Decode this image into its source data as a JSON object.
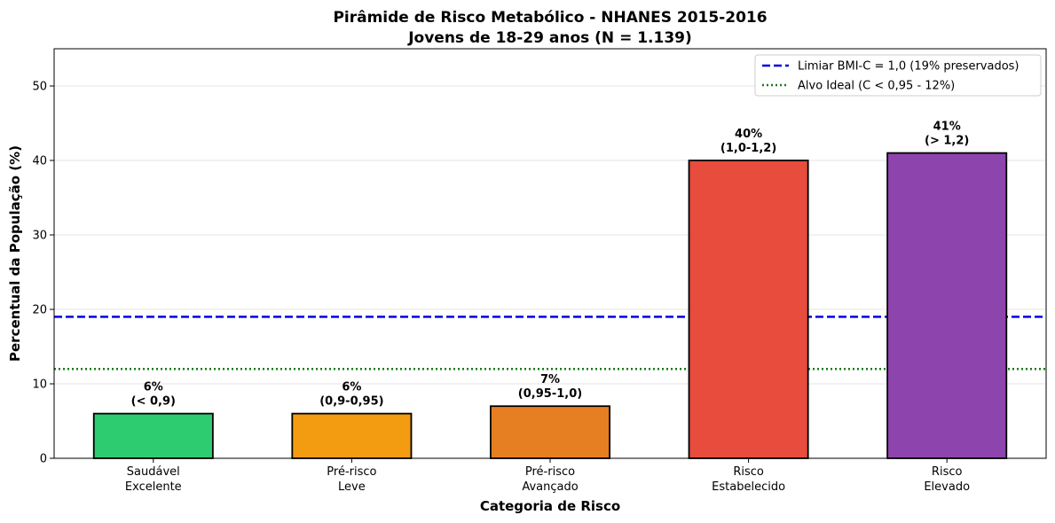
{
  "chart_data": {
    "type": "bar",
    "title": "Pirâmide de Risco Metabólico - NHANES 2015-2016",
    "subtitle": "Jovens de 18-29 anos (N = 1.139)",
    "xlabel": "Categoria de Risco",
    "ylabel": "Percentual da População (%)",
    "ylim": [
      0,
      55
    ],
    "yticks": [
      0,
      10,
      20,
      30,
      40,
      50
    ],
    "grid": "y",
    "legend_position": "top-right",
    "categories": [
      [
        "Saudável",
        "Excelente"
      ],
      [
        "Pré-risco",
        "Leve"
      ],
      [
        "Pré-risco",
        "Avançado"
      ],
      [
        "Risco",
        "Estabelecido"
      ],
      [
        "Risco",
        "Elevado"
      ]
    ],
    "values": [
      6,
      6,
      7,
      40,
      41
    ],
    "bar_labels": [
      [
        "6%",
        "(< 0,9)"
      ],
      [
        "6%",
        "(0,9-0,95)"
      ],
      [
        "7%",
        "(0,95-1,0)"
      ],
      [
        "40%",
        "(1,0-1,2)"
      ],
      [
        "41%",
        "(> 1,2)"
      ]
    ],
    "colors": [
      "#2ecc71",
      "#f39c12",
      "#e67e22",
      "#e74c3c",
      "#8e44ad"
    ],
    "reference_lines": [
      {
        "value": 19,
        "label": "Limiar BMI-C = 1,0 (19% preservados)",
        "color": "#0000dd",
        "style": "dashed"
      },
      {
        "value": 12,
        "label": "Alvo Ideal (C < 0,95 - 12%)",
        "color": "#1a7a1a",
        "style": "dotted"
      }
    ]
  }
}
